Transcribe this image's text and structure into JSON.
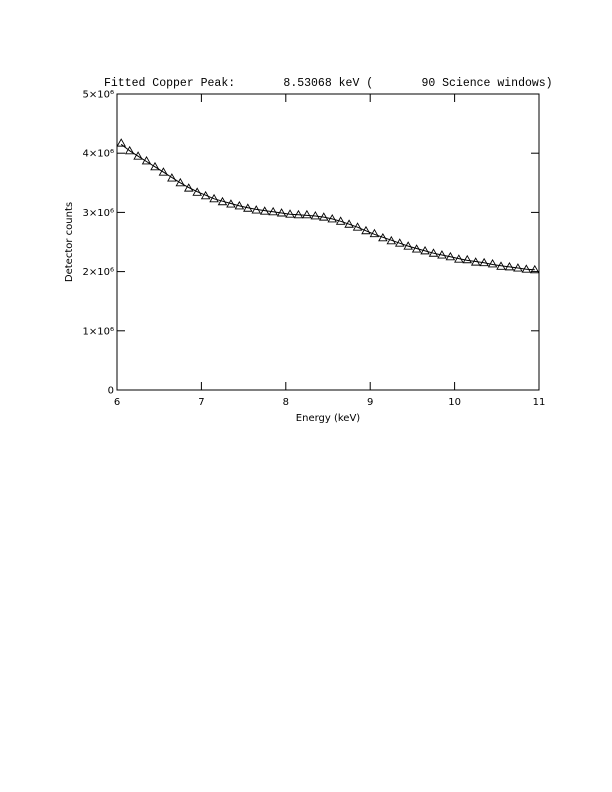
{
  "chart_data": {
    "type": "scatter",
    "title": "Fitted Copper Peak:       8.53068 keV (       90 Science windows)",
    "x_label": "Energy (keV)",
    "y_label": "Detector counts",
    "x": [
      6.05,
      6.15,
      6.25,
      6.35,
      6.45,
      6.55,
      6.65,
      6.75,
      6.85,
      6.95,
      7.05,
      7.15,
      7.25,
      7.35,
      7.45,
      7.55,
      7.65,
      7.75,
      7.85,
      7.95,
      8.05,
      8.15,
      8.25,
      8.35,
      8.45,
      8.55,
      8.65,
      8.75,
      8.85,
      8.95,
      9.05,
      9.15,
      9.25,
      9.35,
      9.45,
      9.55,
      9.65,
      9.75,
      9.85,
      9.95,
      10.05,
      10.15,
      10.25,
      10.35,
      10.45,
      10.55,
      10.65,
      10.75,
      10.85,
      10.95
    ],
    "series": [
      {
        "color": "#000000",
        "marker": "triangle",
        "values": [
          4170000,
          4040000,
          3950000,
          3870000,
          3770000,
          3680000,
          3580000,
          3500000,
          3410000,
          3340000,
          3280000,
          3230000,
          3180000,
          3140000,
          3110000,
          3070000,
          3040000,
          3020000,
          3010000,
          2990000,
          2970000,
          2960000,
          2960000,
          2940000,
          2920000,
          2890000,
          2850000,
          2800000,
          2750000,
          2690000,
          2640000,
          2570000,
          2520000,
          2480000,
          2430000,
          2380000,
          2350000,
          2310000,
          2280000,
          2250000,
          2210000,
          2200000,
          2160000,
          2150000,
          2130000,
          2090000,
          2080000,
          2060000,
          2040000,
          2030000
        ]
      },
      {
        "color": "#000000",
        "marker": "line",
        "values": [
          4150000,
          4040000,
          3950000,
          3860000,
          3770000,
          3680000,
          3590000,
          3500000,
          3420000,
          3350000,
          3290000,
          3230000,
          3190000,
          3150000,
          3110000,
          3080000,
          3050000,
          3030000,
          3010000,
          2990000,
          2970000,
          2960000,
          2950000,
          2940000,
          2920000,
          2890000,
          2850000,
          2800000,
          2750000,
          2690000,
          2630000,
          2580000,
          2530000,
          2480000,
          2430000,
          2390000,
          2350000,
          2310000,
          2280000,
          2250000,
          2220000,
          2190000,
          2170000,
          2150000,
          2120000,
          2100000,
          2080000,
          2060000,
          2040000,
          2030000
        ]
      }
    ],
    "xlim": [
      6,
      11
    ],
    "xticks": [
      6,
      7,
      8,
      9,
      10,
      11
    ],
    "ylim": [
      0,
      5000000
    ],
    "yticks": [
      0,
      {
        "value": 1000000,
        "label": "1×10⁶"
      },
      {
        "value": 2000000,
        "label": "2×10⁶"
      },
      {
        "value": 3000000,
        "label": "3×10⁶"
      },
      {
        "value": 4000000,
        "label": "4×10⁶"
      },
      {
        "value": 5000000,
        "label": "5×10⁶"
      }
    ]
  }
}
